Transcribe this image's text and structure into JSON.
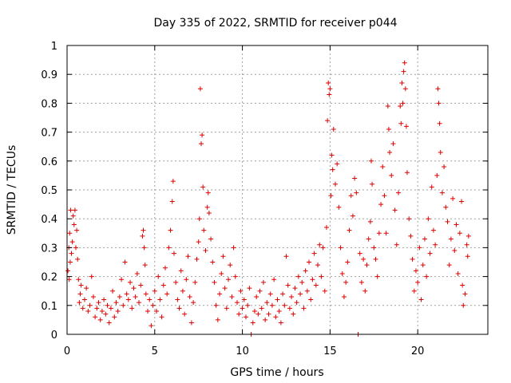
{
  "chart_data": {
    "type": "scatter",
    "title": "Day 335 of 2022, SRMTID for receiver p044",
    "xlabel": "GPS time / hours",
    "ylabel": "SRMTID / TECUs",
    "xlim": [
      0,
      24
    ],
    "ylim": [
      0,
      1
    ],
    "xticks": [
      0,
      5,
      10,
      15,
      20
    ],
    "xtick_labels": [
      "0",
      "5",
      "10",
      "15",
      "20"
    ],
    "yticks": [
      0,
      0.1,
      0.2,
      0.3,
      0.4,
      0.5,
      0.6,
      0.7,
      0.8,
      0.9,
      1
    ],
    "ytick_labels": [
      "0",
      "0.1",
      "0.2",
      "0.3",
      "0.4",
      "0.5",
      "0.6",
      "0.7",
      "0.8",
      "0.9",
      "1"
    ],
    "grid": true,
    "marker": "+",
    "marker_color": "#dd0000",
    "series": [
      {
        "name": "p044",
        "points": [
          [
            0.05,
            0.22
          ],
          [
            0.1,
            0.3
          ],
          [
            0.12,
            0.19
          ],
          [
            0.15,
            0.35
          ],
          [
            0.18,
            0.25
          ],
          [
            0.2,
            0.43
          ],
          [
            0.25,
            0.28
          ],
          [
            0.3,
            0.32
          ],
          [
            0.35,
            0.41
          ],
          [
            0.4,
            0.38
          ],
          [
            0.45,
            0.43
          ],
          [
            0.5,
            0.3
          ],
          [
            0.55,
            0.36
          ],
          [
            0.6,
            0.26
          ],
          [
            0.65,
            0.19
          ],
          [
            0.7,
            0.11
          ],
          [
            0.75,
            0.14
          ],
          [
            0.8,
            0.17
          ],
          [
            0.9,
            0.09
          ],
          [
            1.0,
            0.12
          ],
          [
            1.1,
            0.16
          ],
          [
            1.2,
            0.08
          ],
          [
            1.3,
            0.1
          ],
          [
            1.4,
            0.2
          ],
          [
            1.5,
            0.13
          ],
          [
            1.6,
            0.06
          ],
          [
            1.7,
            0.09
          ],
          [
            1.8,
            0.11
          ],
          [
            1.9,
            0.05
          ],
          [
            2.0,
            0.08
          ],
          [
            2.1,
            0.12
          ],
          [
            2.2,
            0.07
          ],
          [
            2.3,
            0.1
          ],
          [
            2.4,
            0.04
          ],
          [
            2.5,
            0.09
          ],
          [
            2.6,
            0.15
          ],
          [
            2.7,
            0.06
          ],
          [
            2.8,
            0.11
          ],
          [
            2.9,
            0.08
          ],
          [
            3.0,
            0.13
          ],
          [
            3.1,
            0.19
          ],
          [
            3.2,
            0.1
          ],
          [
            3.3,
            0.25
          ],
          [
            3.4,
            0.14
          ],
          [
            3.5,
            0.12
          ],
          [
            3.6,
            0.18
          ],
          [
            3.7,
            0.09
          ],
          [
            3.8,
            0.16
          ],
          [
            3.9,
            0.13
          ],
          [
            4.0,
            0.21
          ],
          [
            4.1,
            0.11
          ],
          [
            4.2,
            0.17
          ],
          [
            4.3,
            0.34
          ],
          [
            4.35,
            0.36
          ],
          [
            4.4,
            0.3
          ],
          [
            4.45,
            0.24
          ],
          [
            4.5,
            0.14
          ],
          [
            4.6,
            0.08
          ],
          [
            4.7,
            0.12
          ],
          [
            4.8,
            0.03
          ],
          [
            4.9,
            0.1
          ],
          [
            5.0,
            0.15
          ],
          [
            5.1,
            0.08
          ],
          [
            5.2,
            0.2
          ],
          [
            5.3,
            0.12
          ],
          [
            5.4,
            0.06
          ],
          [
            5.5,
            0.17
          ],
          [
            5.6,
            0.23
          ],
          [
            5.7,
            0.14
          ],
          [
            5.8,
            0.3
          ],
          [
            5.9,
            0.36
          ],
          [
            6.0,
            0.46
          ],
          [
            6.05,
            0.53
          ],
          [
            6.1,
            0.28
          ],
          [
            6.2,
            0.18
          ],
          [
            6.3,
            0.12
          ],
          [
            6.4,
            0.09
          ],
          [
            6.5,
            0.22
          ],
          [
            6.6,
            0.15
          ],
          [
            6.7,
            0.07
          ],
          [
            6.8,
            0.19
          ],
          [
            6.9,
            0.27
          ],
          [
            7.0,
            0.13
          ],
          [
            7.1,
            0.04
          ],
          [
            7.2,
            0.11
          ],
          [
            7.3,
            0.18
          ],
          [
            7.4,
            0.26
          ],
          [
            7.5,
            0.32
          ],
          [
            7.55,
            0.4
          ],
          [
            7.6,
            0.85
          ],
          [
            7.65,
            0.66
          ],
          [
            7.7,
            0.69
          ],
          [
            7.75,
            0.51
          ],
          [
            7.8,
            0.36
          ],
          [
            7.9,
            0.29
          ],
          [
            8.0,
            0.44
          ],
          [
            8.05,
            0.49
          ],
          [
            8.1,
            0.42
          ],
          [
            8.2,
            0.33
          ],
          [
            8.3,
            0.25
          ],
          [
            8.4,
            0.18
          ],
          [
            8.5,
            0.1
          ],
          [
            8.6,
            0.05
          ],
          [
            8.7,
            0.14
          ],
          [
            8.8,
            0.21
          ],
          [
            8.9,
            0.27
          ],
          [
            9.0,
            0.16
          ],
          [
            9.1,
            0.09
          ],
          [
            9.2,
            0.19
          ],
          [
            9.3,
            0.24
          ],
          [
            9.4,
            0.13
          ],
          [
            9.5,
            0.3
          ],
          [
            9.6,
            0.2
          ],
          [
            9.7,
            0.11
          ],
          [
            9.8,
            0.07
          ],
          [
            9.9,
            0.15
          ],
          [
            10.0,
            0.09
          ],
          [
            10.1,
            0.12
          ],
          [
            10.2,
            0.06
          ],
          [
            10.3,
            0.1
          ],
          [
            10.4,
            0.16
          ],
          [
            10.5,
            0.0
          ],
          [
            10.6,
            0.04
          ],
          [
            10.7,
            0.08
          ],
          [
            10.8,
            0.13
          ],
          [
            10.9,
            0.07
          ],
          [
            11.0,
            0.15
          ],
          [
            11.1,
            0.09
          ],
          [
            11.2,
            0.18
          ],
          [
            11.3,
            0.05
          ],
          [
            11.4,
            0.11
          ],
          [
            11.5,
            0.07
          ],
          [
            11.6,
            0.14
          ],
          [
            11.7,
            0.1
          ],
          [
            11.8,
            0.19
          ],
          [
            11.9,
            0.06
          ],
          [
            12.0,
            0.12
          ],
          [
            12.1,
            0.08
          ],
          [
            12.2,
            0.04
          ],
          [
            12.3,
            0.14
          ],
          [
            12.4,
            0.1
          ],
          [
            12.5,
            0.27
          ],
          [
            12.6,
            0.17
          ],
          [
            12.7,
            0.09
          ],
          [
            12.8,
            0.13
          ],
          [
            12.9,
            0.07
          ],
          [
            13.0,
            0.16
          ],
          [
            13.1,
            0.11
          ],
          [
            13.2,
            0.2
          ],
          [
            13.3,
            0.14
          ],
          [
            13.4,
            0.18
          ],
          [
            13.5,
            0.09
          ],
          [
            13.6,
            0.22
          ],
          [
            13.7,
            0.15
          ],
          [
            13.8,
            0.25
          ],
          [
            13.9,
            0.12
          ],
          [
            14.0,
            0.19
          ],
          [
            14.1,
            0.28
          ],
          [
            14.2,
            0.17
          ],
          [
            14.3,
            0.24
          ],
          [
            14.4,
            0.31
          ],
          [
            14.5,
            0.2
          ],
          [
            14.6,
            0.3
          ],
          [
            14.7,
            0.15
          ],
          [
            14.8,
            0.37
          ],
          [
            14.85,
            0.74
          ],
          [
            14.9,
            0.87
          ],
          [
            14.95,
            0.83
          ],
          [
            15.0,
            0.85
          ],
          [
            15.05,
            0.48
          ],
          [
            15.1,
            0.62
          ],
          [
            15.15,
            0.57
          ],
          [
            15.2,
            0.71
          ],
          [
            15.3,
            0.52
          ],
          [
            15.4,
            0.59
          ],
          [
            15.5,
            0.44
          ],
          [
            15.6,
            0.3
          ],
          [
            15.7,
            0.21
          ],
          [
            15.8,
            0.13
          ],
          [
            15.9,
            0.18
          ],
          [
            16.0,
            0.25
          ],
          [
            16.1,
            0.36
          ],
          [
            16.2,
            0.48
          ],
          [
            16.3,
            0.41
          ],
          [
            16.4,
            0.54
          ],
          [
            16.5,
            0.49
          ],
          [
            16.6,
            0.0
          ],
          [
            16.7,
            0.28
          ],
          [
            16.8,
            0.18
          ],
          [
            16.9,
            0.26
          ],
          [
            17.0,
            0.15
          ],
          [
            17.1,
            0.24
          ],
          [
            17.2,
            0.33
          ],
          [
            17.3,
            0.39
          ],
          [
            17.35,
            0.6
          ],
          [
            17.4,
            0.52
          ],
          [
            17.5,
            0.3
          ],
          [
            17.6,
            0.26
          ],
          [
            17.7,
            0.2
          ],
          [
            17.8,
            0.35
          ],
          [
            17.9,
            0.45
          ],
          [
            18.0,
            0.58
          ],
          [
            18.1,
            0.48
          ],
          [
            18.2,
            0.35
          ],
          [
            18.3,
            0.79
          ],
          [
            18.35,
            0.71
          ],
          [
            18.4,
            0.63
          ],
          [
            18.5,
            0.55
          ],
          [
            18.6,
            0.66
          ],
          [
            18.7,
            0.43
          ],
          [
            18.8,
            0.31
          ],
          [
            18.9,
            0.49
          ],
          [
            19.0,
            0.79
          ],
          [
            19.05,
            0.73
          ],
          [
            19.1,
            0.87
          ],
          [
            19.15,
            0.8
          ],
          [
            19.2,
            0.91
          ],
          [
            19.25,
            0.94
          ],
          [
            19.3,
            0.85
          ],
          [
            19.35,
            0.72
          ],
          [
            19.4,
            0.56
          ],
          [
            19.5,
            0.4
          ],
          [
            19.6,
            0.34
          ],
          [
            19.7,
            0.26
          ],
          [
            19.8,
            0.15
          ],
          [
            19.9,
            0.22
          ],
          [
            20.0,
            0.18
          ],
          [
            20.1,
            0.3
          ],
          [
            20.2,
            0.12
          ],
          [
            20.3,
            0.24
          ],
          [
            20.4,
            0.33
          ],
          [
            20.5,
            0.2
          ],
          [
            20.6,
            0.4
          ],
          [
            20.7,
            0.28
          ],
          [
            20.8,
            0.51
          ],
          [
            20.9,
            0.36
          ],
          [
            21.0,
            0.31
          ],
          [
            21.1,
            0.55
          ],
          [
            21.15,
            0.85
          ],
          [
            21.2,
            0.8
          ],
          [
            21.25,
            0.73
          ],
          [
            21.3,
            0.63
          ],
          [
            21.4,
            0.49
          ],
          [
            21.5,
            0.58
          ],
          [
            21.6,
            0.44
          ],
          [
            21.7,
            0.39
          ],
          [
            21.8,
            0.24
          ],
          [
            21.9,
            0.33
          ],
          [
            22.0,
            0.47
          ],
          [
            22.1,
            0.29
          ],
          [
            22.2,
            0.38
          ],
          [
            22.3,
            0.21
          ],
          [
            22.4,
            0.35
          ],
          [
            22.5,
            0.46
          ],
          [
            22.55,
            0.17
          ],
          [
            22.6,
            0.1
          ],
          [
            22.7,
            0.14
          ],
          [
            22.8,
            0.31
          ],
          [
            22.85,
            0.27
          ],
          [
            22.9,
            0.34
          ]
        ]
      }
    ]
  }
}
